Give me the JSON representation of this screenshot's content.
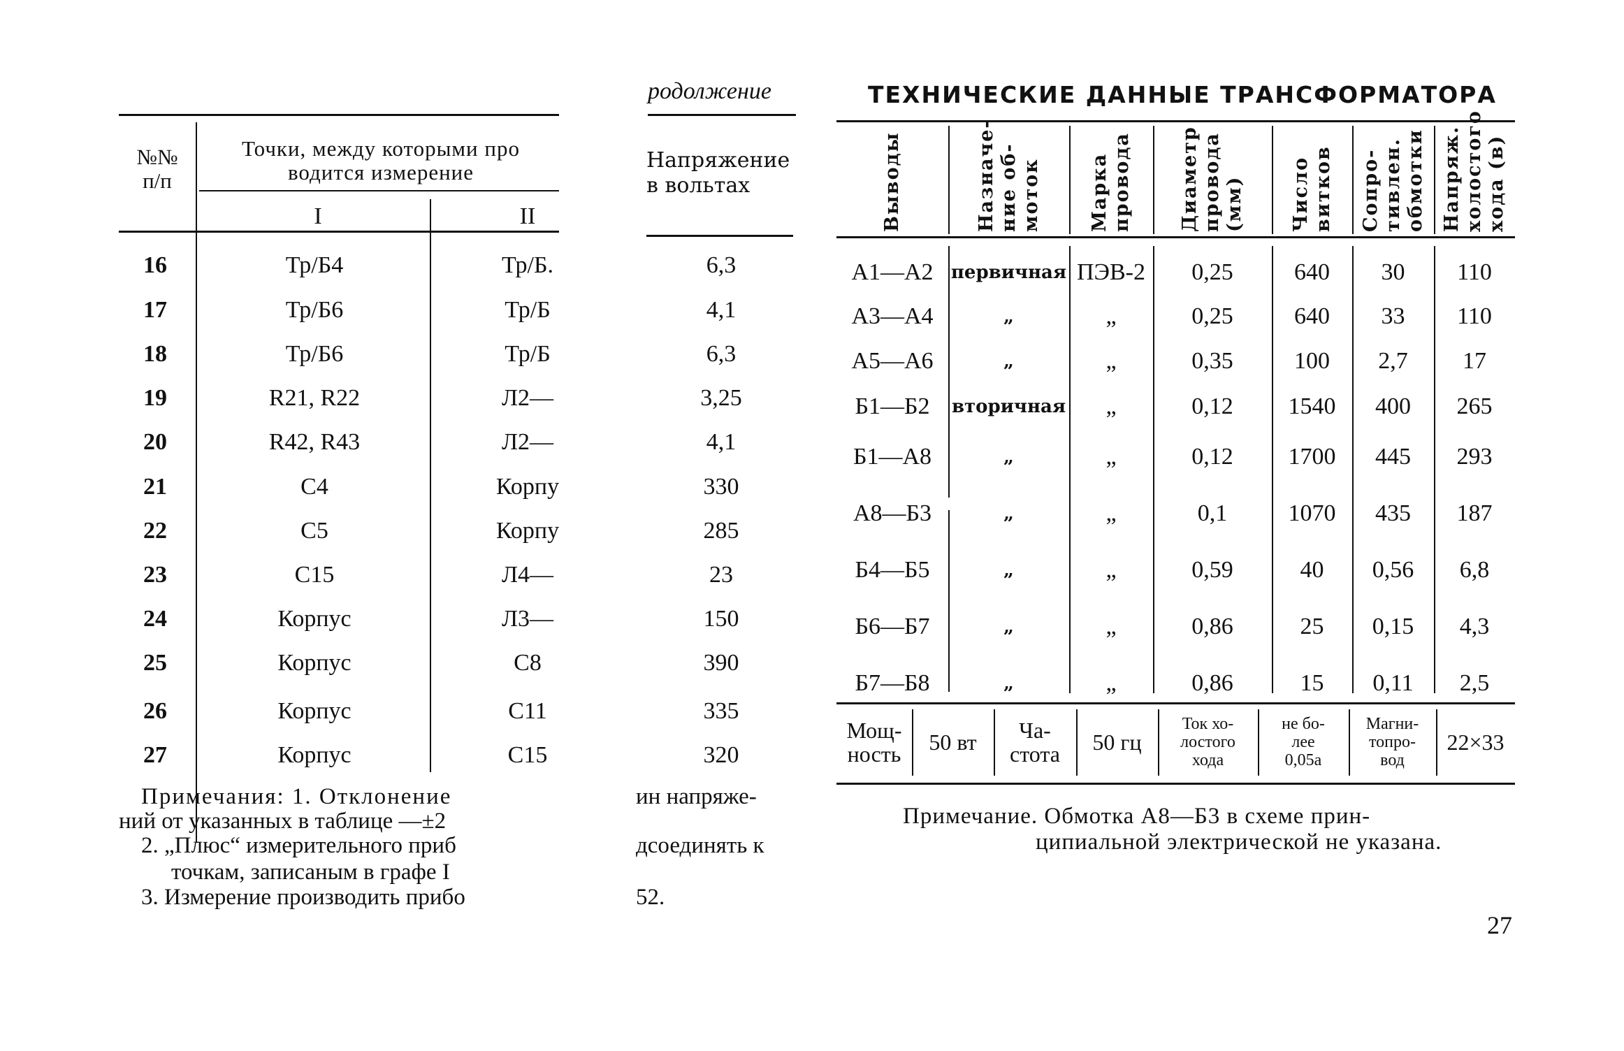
{
  "left_table": {
    "headers": {
      "num": "№№\nп/п",
      "points": "Точки, между которыми про\nводится измерение",
      "col1": "I",
      "col2": "II"
    },
    "rows": [
      [
        "16",
        "Тр/Б4",
        "Тр/Б."
      ],
      [
        "17",
        "Тр/Б6",
        "Тр/Б"
      ],
      [
        "18",
        "Тр/Б6",
        "Тр/Б"
      ],
      [
        "19",
        "R21, R22",
        "Л2—"
      ],
      [
        "20",
        "R42, R43",
        "Л2—"
      ],
      [
        "21",
        "С4",
        "Корпу"
      ],
      [
        "22",
        "С5",
        "Корпу"
      ],
      [
        "23",
        "С15",
        "Л4—"
      ],
      [
        "24",
        "Корпус",
        "Л3—"
      ],
      [
        "25",
        "Корпус",
        "С8"
      ],
      [
        "26",
        "Корпус",
        "С11"
      ],
      [
        "27",
        "Корпус",
        "С15"
      ]
    ],
    "notes": [
      "Примечания: 1. Отклонение",
      "ний от указанных в таблице —±2",
      "2. „Плюс“ измерительного приб",
      "точкам, записаным в графе I",
      "3. Измерение производить прибо"
    ]
  },
  "middle": {
    "continuation": "родолжение",
    "header": "Напряжение\nв вольтах",
    "values": [
      "6,3",
      "4,1",
      "6,3",
      "3,25",
      "4,1",
      "330",
      "285",
      "23",
      "150",
      "390",
      "335",
      "320"
    ],
    "notes": [
      "ин напряже-",
      "дсоединять к",
      "52."
    ]
  },
  "right_table": {
    "title": "ТЕХНИЧЕСКИЕ ДАННЫЕ ТРАНСФОРМАТОРА",
    "headers": [
      "Выводы",
      "Назначе-\nние об-\nмоток",
      "Марка\nпровода",
      "Диаметр\nпровода\n(мм)",
      "Число\nвитков",
      "Сопро-\nтивлен.\nобмотки",
      "Напряж.\nхолостого\nхода (в)"
    ],
    "rows": [
      [
        "А1—А2",
        "первичная",
        "ПЭВ-2",
        "0,25",
        "640",
        "30",
        "110"
      ],
      [
        "А3—А4",
        "„",
        "„",
        "0,25",
        "640",
        "33",
        "110"
      ],
      [
        "А5—А6",
        "„",
        "„",
        "0,35",
        "100",
        "2,7",
        "17"
      ],
      [
        "Б1—Б2",
        "вторичная",
        "„",
        "0,12",
        "1540",
        "400",
        "265"
      ],
      [
        "Б1—А8",
        "„",
        "„",
        "0,12",
        "1700",
        "445",
        "293"
      ],
      [
        "А8—Б3",
        "„",
        "„",
        "0,1",
        "1070",
        "435",
        "187"
      ],
      [
        "Б4—Б5",
        "„",
        "„",
        "0,59",
        "40",
        "0,56",
        "6,8"
      ],
      [
        "Б6—Б7",
        "„",
        "„",
        "0,86",
        "25",
        "0,15",
        "4,3"
      ],
      [
        "Б7—Б8",
        "„",
        "„",
        "0,86",
        "15",
        "0,11",
        "2,5"
      ]
    ],
    "footer": [
      "Мощ-\nность",
      "50 вт",
      "Ча-\nстота",
      "50 гц",
      "Ток хо-\nлостого\nхода",
      "не бо-\nлее\n0,05а",
      "Магни-\nтопро-\nвод",
      "22×33"
    ],
    "note": [
      "Примечание. Обмотка А8—Б3 в схеме прин-",
      "ципиальной электрической не указана."
    ]
  },
  "page_number": "27"
}
